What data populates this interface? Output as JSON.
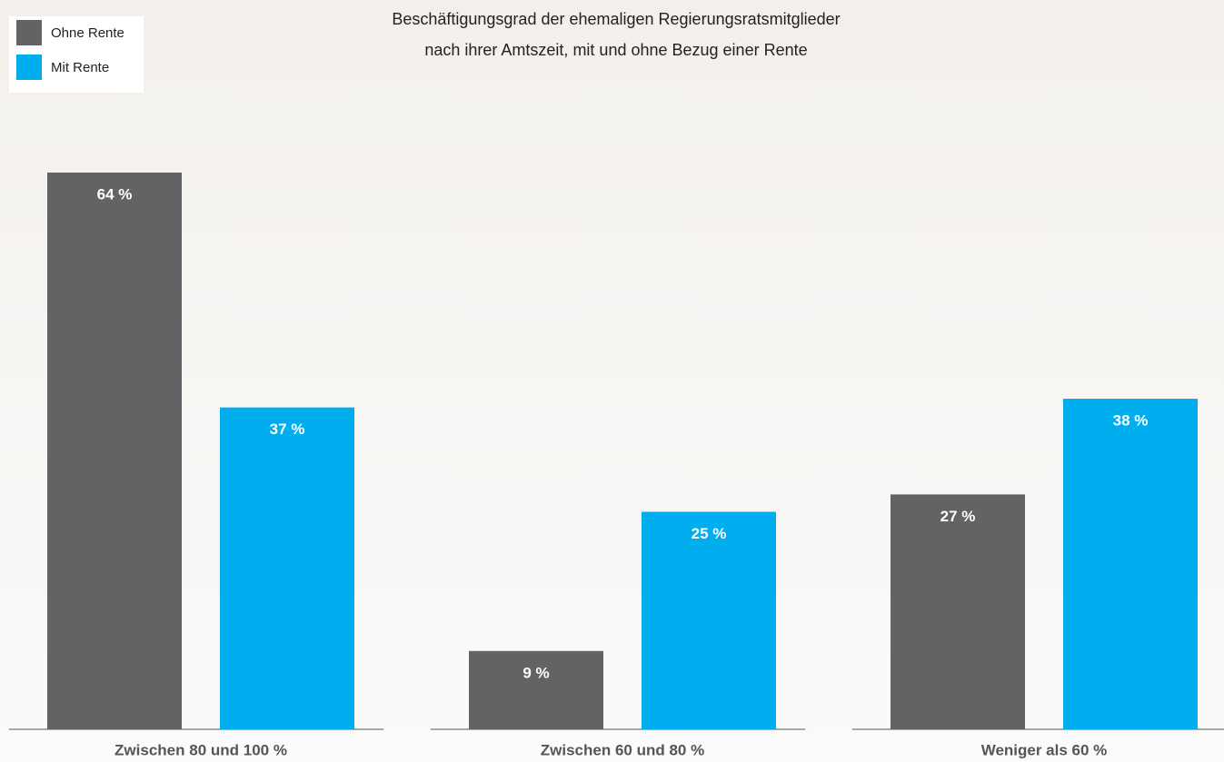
{
  "chart_data": {
    "type": "bar",
    "title": [
      "Beschäftigungsgrad der ehemaligen Regierungsratsmitglieder",
      "nach ihrer Amtszeit, mit und ohne Bezug einer Rente"
    ],
    "categories": [
      "Zwischen 80 und 100 %",
      "Zwischen 60 und 80 %",
      "Weniger als 60 %"
    ],
    "series": [
      {
        "name": "Ohne Rente",
        "color": "#636366",
        "values": [
          64,
          9,
          27
        ],
        "value_labels": [
          "64 %",
          "9 %",
          "27 %"
        ]
      },
      {
        "name": "Mit Rente",
        "color": "#00aeef",
        "values": [
          37,
          25,
          38
        ],
        "value_labels": [
          "37 %",
          "25 %",
          "38 %"
        ]
      }
    ],
    "legend": "top-left"
  }
}
